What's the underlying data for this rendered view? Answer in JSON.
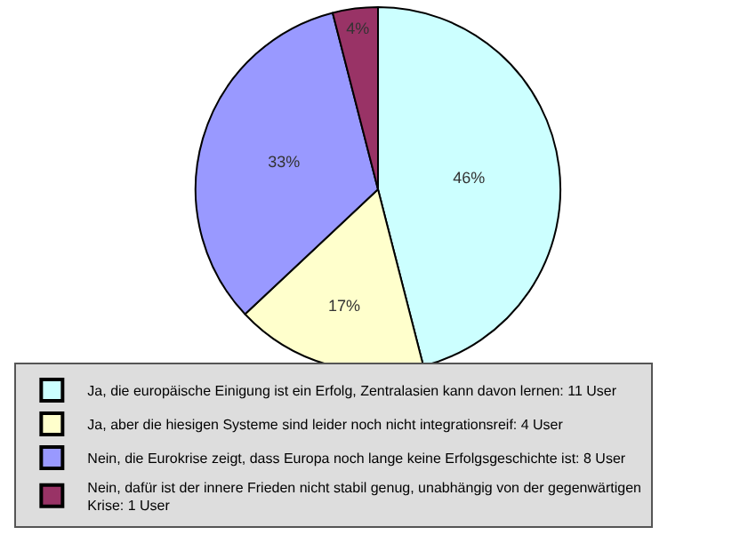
{
  "chart_data": {
    "type": "pie",
    "categories": [
      "Ja, die europäische Einigung ist ein Erfolg, Zentralasien kann davon lernen: 11 User",
      "Ja, aber die hiesigen Systeme sind leider noch nicht integrationsreif: 4 User",
      "Nein, die Eurokrise zeigt, dass Europa noch lange keine Erfolgsgeschichte ist: 8 User",
      "Nein, dafür ist der innere Frieden nicht stabil genug, unabhängig von der gegenwärtigen Krise: 1 User"
    ],
    "values": [
      46,
      17,
      33,
      4
    ],
    "value_labels": [
      "46%",
      "17%",
      "33%",
      "4%"
    ],
    "colors": [
      "#ccffff",
      "#ffffcc",
      "#9999ff",
      "#993366"
    ],
    "legend": "bottom"
  }
}
